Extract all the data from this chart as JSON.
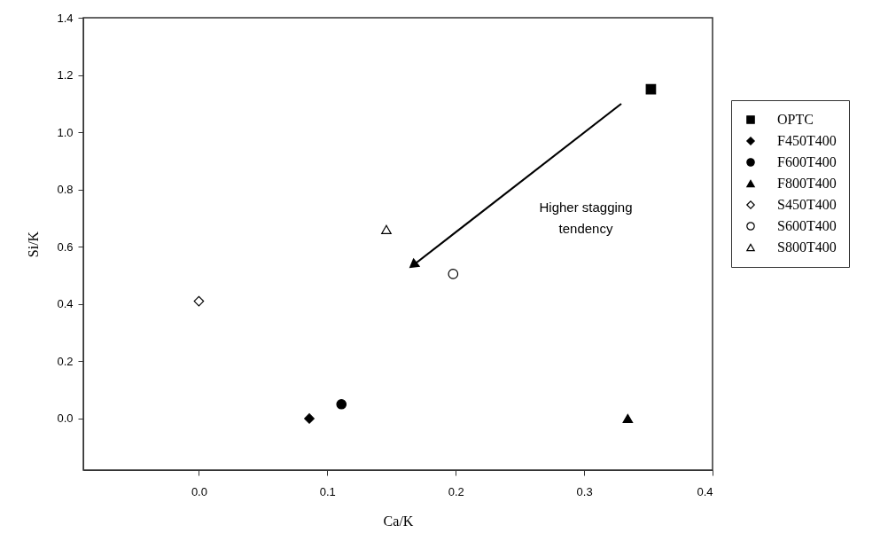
{
  "chart_data": {
    "type": "scatter",
    "xlabel": "Ca/K",
    "ylabel": "Si/K",
    "xlim": [
      -0.09,
      0.4
    ],
    "xticks": [
      {
        "value": 0,
        "label": "0.0"
      },
      0.1,
      0.2,
      0.3,
      0.4
    ],
    "ylim": [
      -0.18,
      1.4
    ],
    "yticks": [
      {
        "value": 0,
        "label": "0.0"
      },
      0.2,
      0.4,
      0.6,
      0.8,
      {
        "value": 1,
        "label": "1.0"
      },
      1.2,
      1.4
    ],
    "grid": false,
    "legend": "right",
    "annotations": [
      "Higher stagging\ntendency"
    ],
    "series": [
      {
        "name": "OPTC",
        "color": "#000000",
        "marker": "square",
        "x": [
          0.352
        ],
        "values": [
          1.15
        ]
      },
      {
        "name": "F450T400",
        "color": "#000000",
        "marker": "diamond",
        "x": [
          0.086
        ],
        "values": [
          0.0
        ]
      },
      {
        "name": "F600T400",
        "color": "#000000",
        "marker": "circle",
        "x": [
          0.111
        ],
        "values": [
          0.05
        ]
      },
      {
        "name": "F800T400",
        "color": "#000000",
        "marker": "triangle",
        "x": [
          0.334
        ],
        "values": [
          0.0
        ]
      },
      {
        "name": "S450T400",
        "color": "#000000",
        "marker": "diamond-open",
        "x": [
          0.0
        ],
        "values": [
          0.41
        ]
      },
      {
        "name": "S600T400",
        "color": "#000000",
        "marker": "circle-open",
        "x": [
          0.198
        ],
        "values": [
          0.505
        ]
      },
      {
        "name": "S800T400",
        "color": "#000000",
        "marker": "triangle-open",
        "x": [
          0.146
        ],
        "values": [
          0.66
        ]
      }
    ]
  }
}
